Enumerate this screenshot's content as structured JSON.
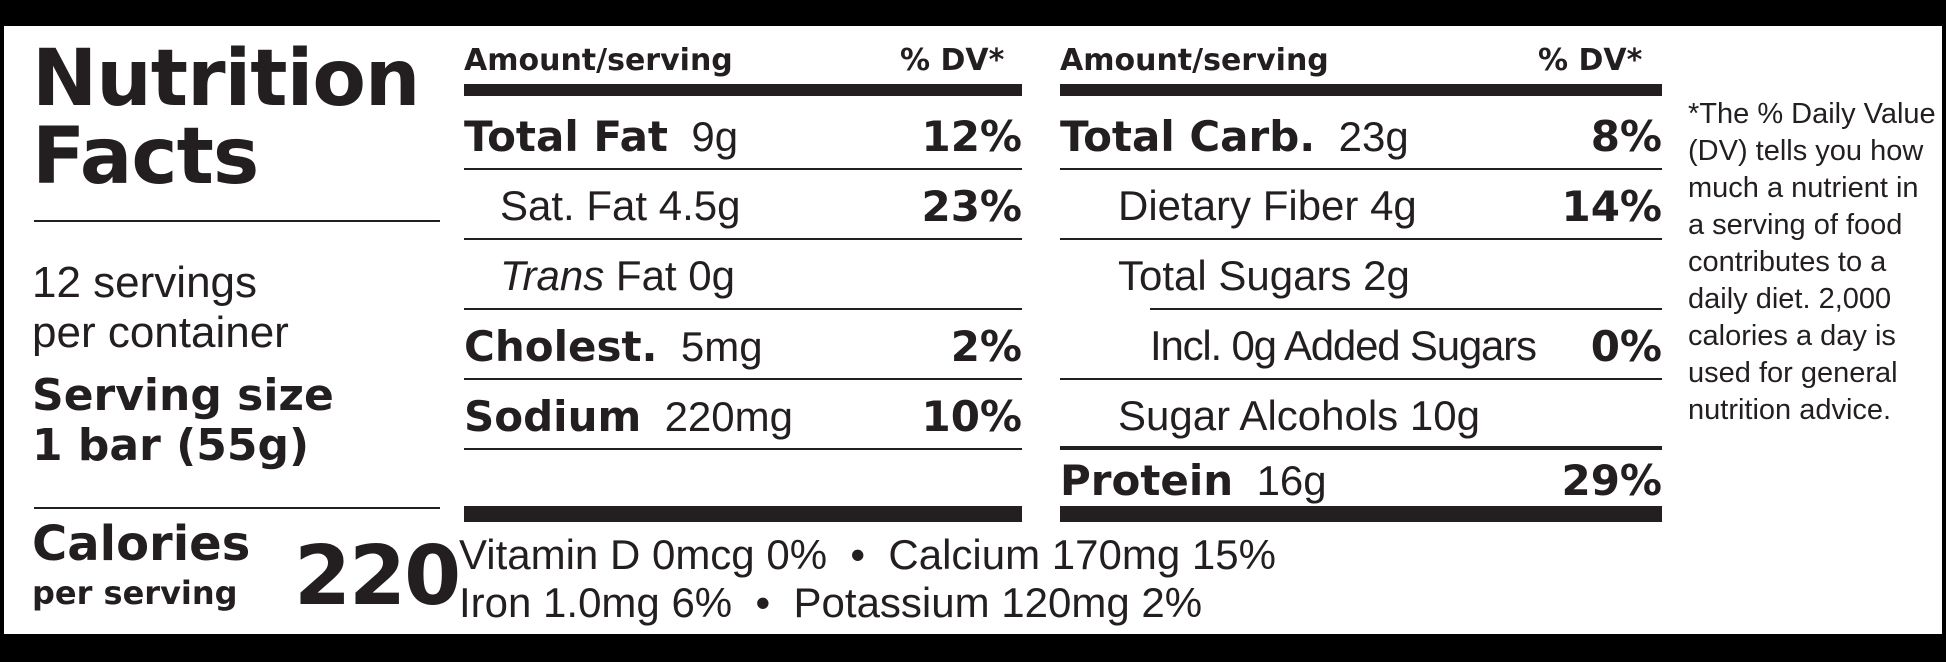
{
  "label": {
    "title_line1": "Nutrition",
    "title_line2": "Facts",
    "servings_line1": "12 servings",
    "servings_line2": "per container",
    "serving_size_line1": "Serving size",
    "serving_size_line2": "1 bar (55g)",
    "calories_label": "Calories",
    "calories_sub": "per serving",
    "calories_value": "220"
  },
  "col1": {
    "header_amount": "Amount/serving",
    "header_dv": "% DV*",
    "rows": [
      {
        "name": "Total Fat",
        "amount": "9g",
        "dv": "12%"
      },
      {
        "name": "Sat. Fat",
        "amount": "4.5g",
        "dv": "23%"
      },
      {
        "name": "Trans",
        "amount": "Fat 0g",
        "dv": ""
      },
      {
        "name": "Cholest.",
        "amount": "5mg",
        "dv": "2%"
      },
      {
        "name": "Sodium",
        "amount": "220mg",
        "dv": "10%"
      }
    ]
  },
  "col2": {
    "header_amount": "Amount/serving",
    "header_dv": "% DV*",
    "rows": [
      {
        "name": "Total Carb.",
        "amount": "23g",
        "dv": "8%"
      },
      {
        "name": "Dietary Fiber",
        "amount": "4g",
        "dv": "14%"
      },
      {
        "name": "Total Sugars",
        "amount": "2g",
        "dv": ""
      },
      {
        "name": "Incl. 0g Added Sugars",
        "amount": "",
        "dv": "0%"
      },
      {
        "name": "Sugar Alcohols",
        "amount": "10g",
        "dv": ""
      },
      {
        "name": "Protein",
        "amount": "16g",
        "dv": "29%"
      }
    ]
  },
  "vitamins": {
    "line1": "Vitamin D 0mcg 0%  •  Calcium 170mg 15%",
    "line2": "Iron 1.0mg 6%  •  Potassium 120mg 2%"
  },
  "footnote": "*The % Daily Value (DV) tells you how much a nutrient in a serving of food contributes to a daily diet. 2,000 calories a day is used for general nutrition advice."
}
